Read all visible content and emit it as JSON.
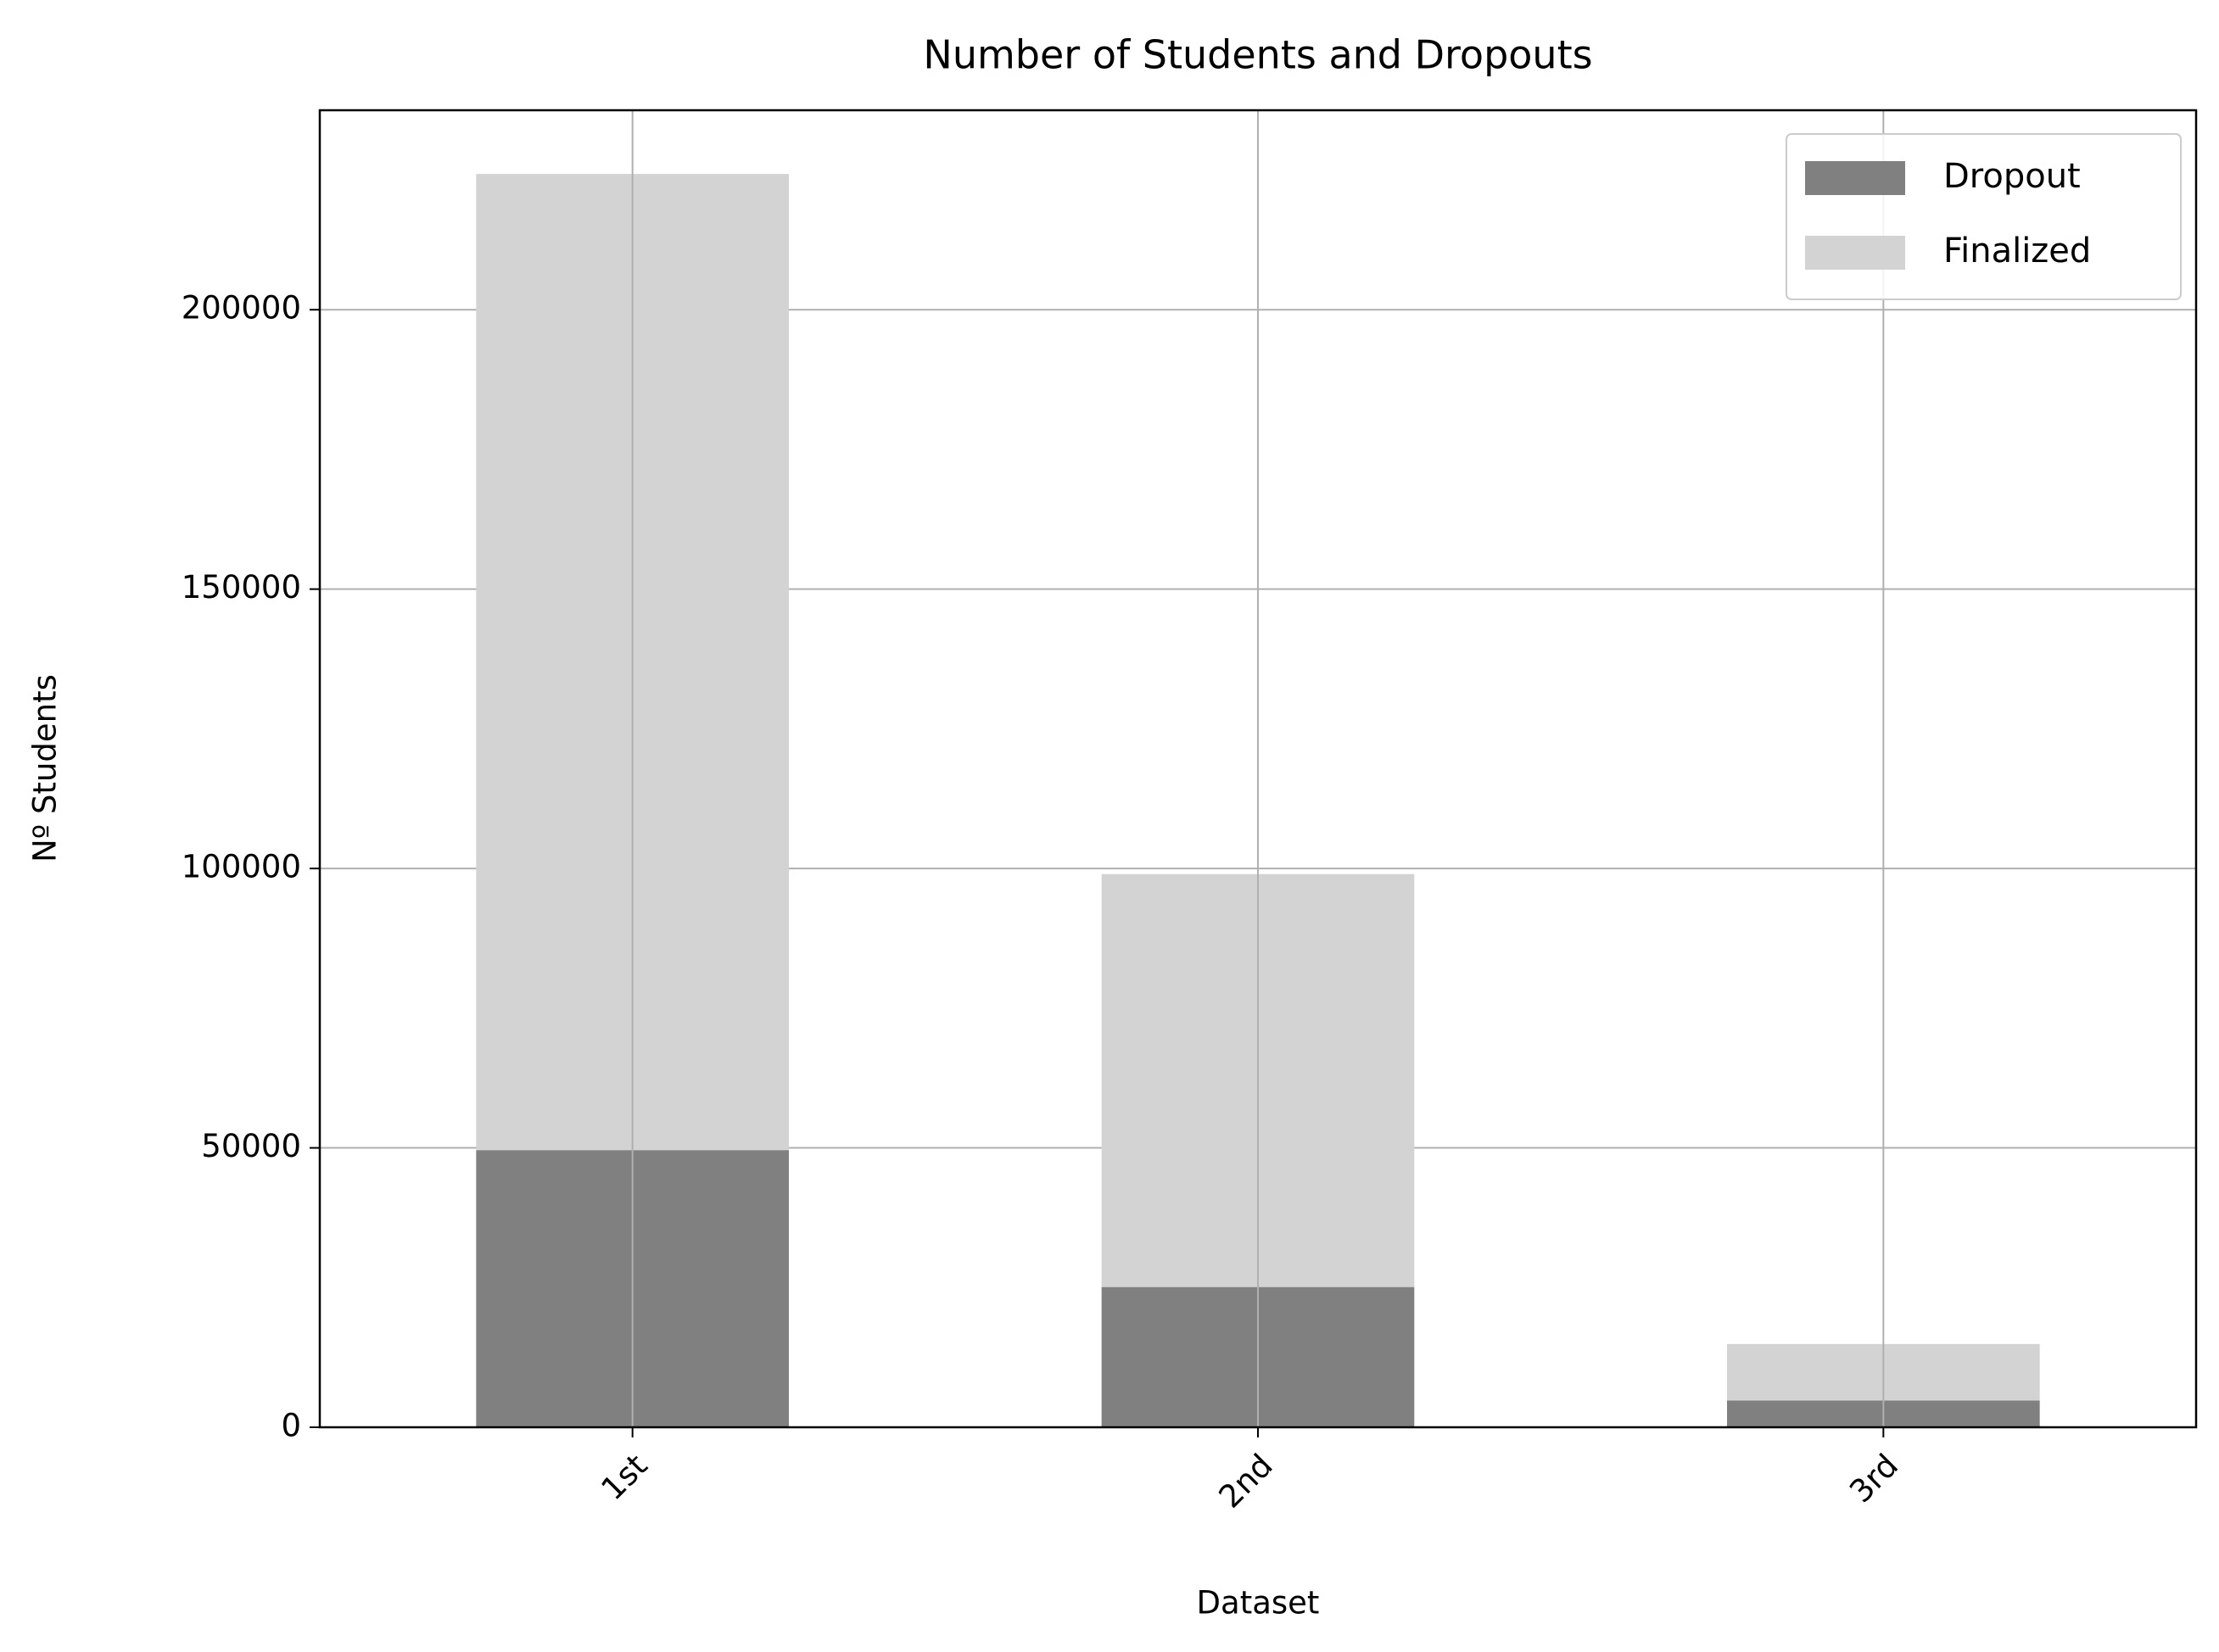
{
  "chart_data": {
    "type": "stacked-bar",
    "title": "Number of Students and Dropouts",
    "x_label": "Dataset",
    "y_label": "Nº Students",
    "categories": [
      "1st",
      "2nd",
      "3rd"
    ],
    "series": [
      {
        "name": "Dropout",
        "color": "#808080",
        "values": [
          49600,
          25100,
          4800
        ]
      },
      {
        "name": "Finalized",
        "color": "#d3d3d3",
        "values": [
          174700,
          73900,
          10100
        ]
      }
    ],
    "ylim": [
      0,
      235700
    ],
    "yticks": [
      0,
      50000,
      100000,
      150000,
      200000
    ],
    "grid": true,
    "legend": "upper-right"
  }
}
